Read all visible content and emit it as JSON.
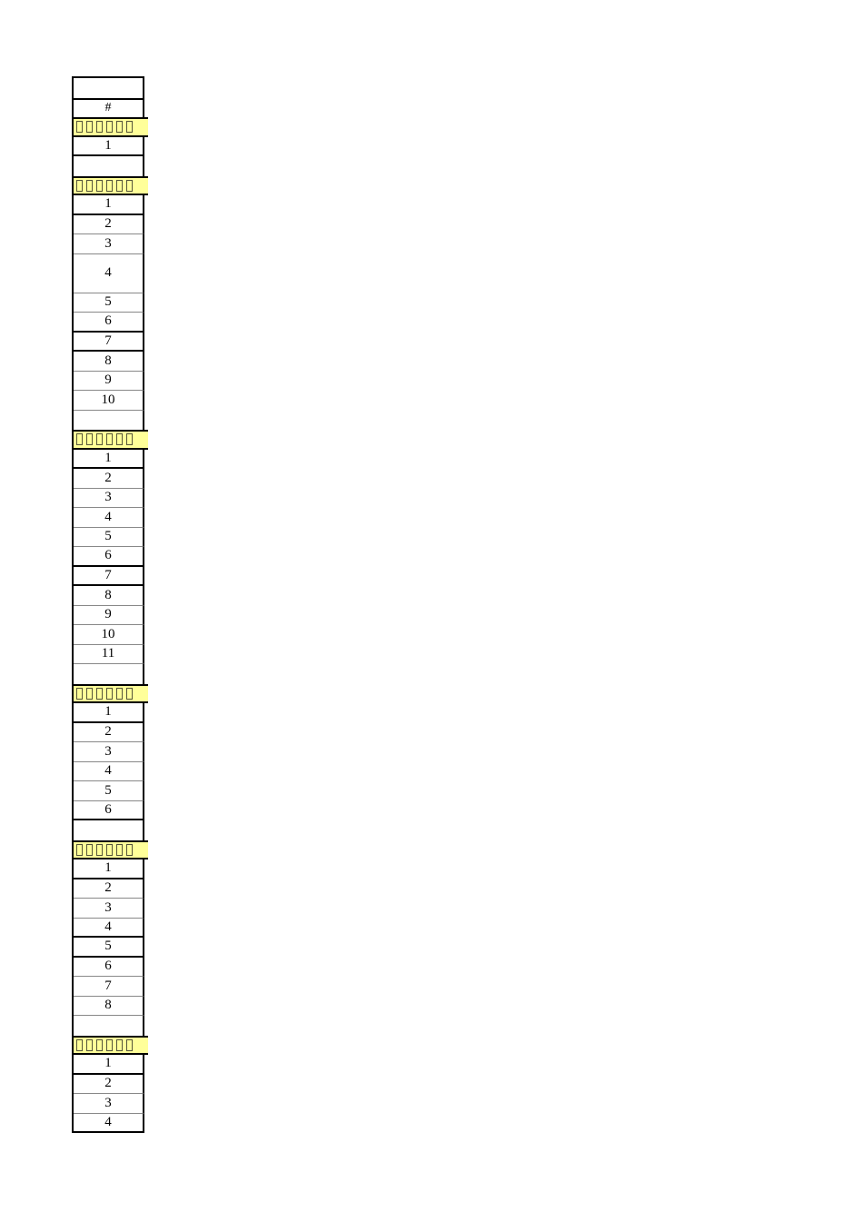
{
  "page": {
    "background": "#ffffff"
  },
  "colors": {
    "cell_fill": "#ffffff",
    "section_header_fill": "#ffff99",
    "border_strong": "#000000",
    "border_light": "#888888",
    "text": "#000000",
    "missing_glyph_outline": "#55553a"
  },
  "table": {
    "top_rows": [
      {
        "type": "blank"
      },
      {
        "type": "hash",
        "label": "#"
      }
    ],
    "sections": [
      {
        "header_text": "□□□□□□",
        "rows": [
          {
            "label": "1",
            "border": "thick"
          }
        ],
        "trailing_blank": true
      },
      {
        "header_text": "□□□□□□",
        "rows": [
          {
            "label": "1",
            "border": "thick"
          },
          {
            "label": "2",
            "border": "thin"
          },
          {
            "label": "3",
            "border": "thin"
          },
          {
            "label": "4",
            "border": "thin",
            "tall": true
          },
          {
            "label": "5",
            "border": "thin"
          },
          {
            "label": "6",
            "border": "thick"
          },
          {
            "label": "7",
            "border": "thick"
          },
          {
            "label": "8",
            "border": "thin"
          },
          {
            "label": "9",
            "border": "thin"
          },
          {
            "label": "10",
            "border": "thin"
          }
        ],
        "trailing_blank": true
      },
      {
        "header_text": "□□□□□□",
        "rows": [
          {
            "label": "1",
            "border": "thick"
          },
          {
            "label": "2",
            "border": "thin"
          },
          {
            "label": "3",
            "border": "thin"
          },
          {
            "label": "4",
            "border": "thin"
          },
          {
            "label": "5",
            "border": "thin"
          },
          {
            "label": "6",
            "border": "thick"
          },
          {
            "label": "7",
            "border": "thick"
          },
          {
            "label": "8",
            "border": "thin"
          },
          {
            "label": "9",
            "border": "thin"
          },
          {
            "label": "10",
            "border": "thin"
          },
          {
            "label": "11",
            "border": "thin"
          }
        ],
        "trailing_blank": true
      },
      {
        "header_text": "□□□□□□",
        "rows": [
          {
            "label": "1",
            "border": "thick"
          },
          {
            "label": "2",
            "border": "thin"
          },
          {
            "label": "3",
            "border": "thin"
          },
          {
            "label": "4",
            "border": "thin"
          },
          {
            "label": "5",
            "border": "thin"
          },
          {
            "label": "6",
            "border": "thick"
          }
        ],
        "trailing_blank": true
      },
      {
        "header_text": "□□□□□□",
        "rows": [
          {
            "label": "1",
            "border": "thick"
          },
          {
            "label": "2",
            "border": "thin"
          },
          {
            "label": "3",
            "border": "thin"
          },
          {
            "label": "4",
            "border": "thick"
          },
          {
            "label": "5",
            "border": "thick"
          },
          {
            "label": "6",
            "border": "thin"
          },
          {
            "label": "7",
            "border": "thin"
          },
          {
            "label": "8",
            "border": "thin"
          }
        ],
        "trailing_blank": true
      },
      {
        "header_text": "□□□□□□",
        "rows": [
          {
            "label": "1",
            "border": "thick"
          },
          {
            "label": "2",
            "border": "thin"
          },
          {
            "label": "3",
            "border": "thin"
          },
          {
            "label": "4",
            "border": "thick"
          }
        ],
        "trailing_blank": false
      }
    ]
  }
}
